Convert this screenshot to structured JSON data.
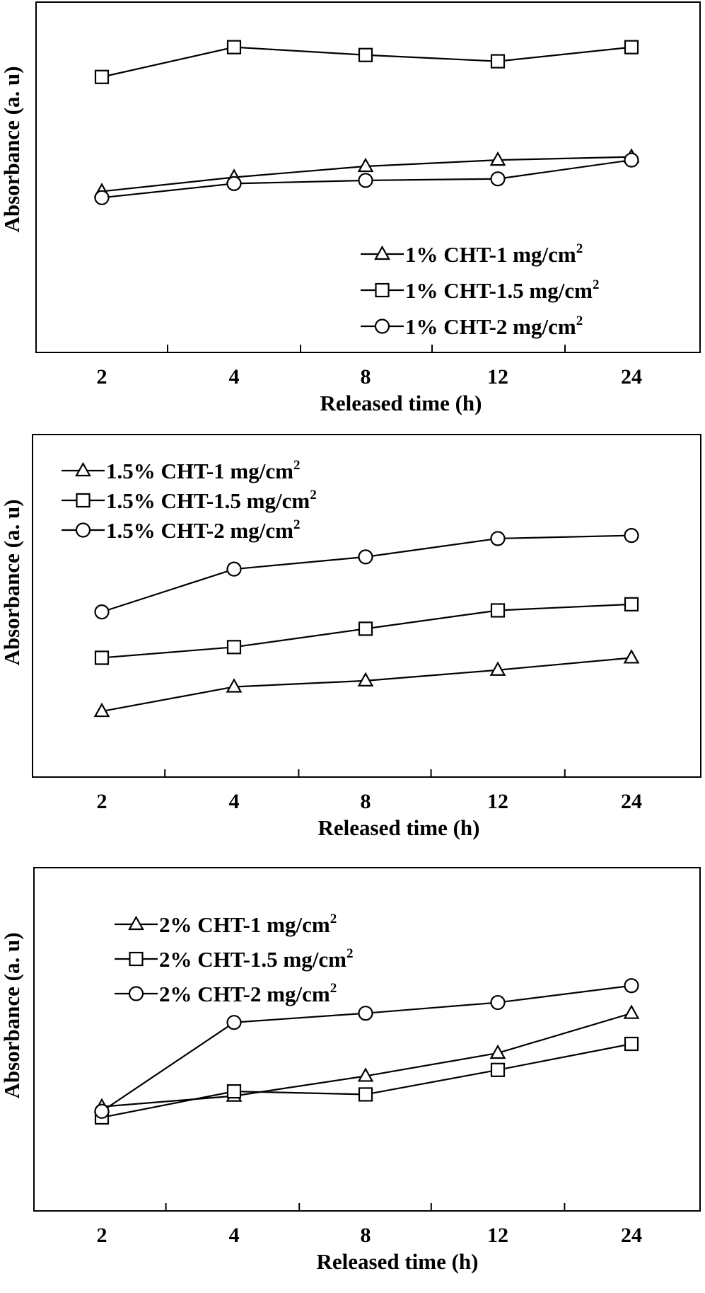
{
  "chart_data": [
    {
      "type": "line",
      "categories": [
        "2",
        "4",
        "8",
        "12",
        "24"
      ],
      "xlabel": "Released time (h)",
      "ylabel": "Absorbance  (a. u)",
      "ylim": [
        0,
        100
      ],
      "y_ticks_shown": false,
      "grid": false,
      "legend_position": "bottom-right",
      "series": [
        {
          "name": "1% CHT-1 mg/cm",
          "name_superscript": "2",
          "marker": "triangle",
          "values": [
            45.5,
            50.0,
            53.5,
            55.5,
            56.5
          ]
        },
        {
          "name": "1% CHT-1.5 mg/cm",
          "name_superscript": "2",
          "marker": "square",
          "values": [
            82.0,
            91.5,
            89.0,
            87.0,
            91.5
          ]
        },
        {
          "name": "1% CHT-2 mg/cm",
          "name_superscript": "2",
          "marker": "circle",
          "values": [
            43.5,
            48.0,
            49.0,
            49.5,
            55.5
          ]
        }
      ]
    },
    {
      "type": "line",
      "categories": [
        "2",
        "4",
        "8",
        "12",
        "24"
      ],
      "xlabel": "Released time (h)",
      "ylabel": "Absorbance  (a. u)",
      "ylim": [
        0,
        100
      ],
      "y_ticks_shown": false,
      "grid": false,
      "legend_position": "top-left",
      "series": [
        {
          "name": "1.5% CHT-1 mg/cm",
          "name_superscript": "2",
          "marker": "triangle",
          "values": [
            15.5,
            23.5,
            25.5,
            29.0,
            33.0
          ]
        },
        {
          "name": "1.5% CHT-1.5 mg/cm",
          "name_superscript": "2",
          "marker": "square",
          "values": [
            33.0,
            36.5,
            42.5,
            48.5,
            50.5
          ]
        },
        {
          "name": "1.5% CHT-2 mg/cm",
          "name_superscript": "2",
          "marker": "circle",
          "values": [
            48.0,
            62.0,
            66.0,
            72.0,
            73.0
          ]
        }
      ]
    },
    {
      "type": "line",
      "categories": [
        "2",
        "4",
        "8",
        "12",
        "24"
      ],
      "xlabel": "Released time (h)",
      "ylabel": "Absorbance  (a. u)",
      "ylim": [
        0,
        100
      ],
      "y_ticks_shown": false,
      "grid": false,
      "legend_position": "top-left",
      "series": [
        {
          "name": "2% CHT-1 mg/cm",
          "name_superscript": "2",
          "marker": "triangle",
          "values": [
            28.0,
            31.5,
            38.0,
            45.5,
            58.5
          ]
        },
        {
          "name": "2% CHT-1.5 mg/cm",
          "name_superscript": "2",
          "marker": "square",
          "values": [
            24.5,
            33.0,
            32.0,
            40.0,
            48.5
          ]
        },
        {
          "name": "2% CHT-2 mg/cm",
          "name_superscript": "2",
          "marker": "circle",
          "values": [
            26.5,
            55.5,
            58.5,
            62.0,
            67.5
          ]
        }
      ]
    }
  ]
}
